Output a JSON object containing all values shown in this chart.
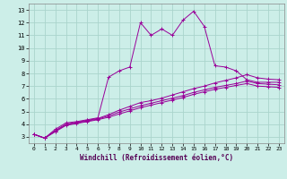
{
  "xlabel": "Windchill (Refroidissement éolien,°C)",
  "background_color": "#cceee8",
  "line_color": "#990099",
  "grid_color": "#aad4cc",
  "xlim": [
    -0.5,
    23.5
  ],
  "ylim": [
    2.5,
    13.5
  ],
  "xticks": [
    0,
    1,
    2,
    3,
    4,
    5,
    6,
    7,
    8,
    9,
    10,
    11,
    12,
    13,
    14,
    15,
    16,
    17,
    18,
    19,
    20,
    21,
    22,
    23
  ],
  "yticks": [
    3,
    4,
    5,
    6,
    7,
    8,
    9,
    10,
    11,
    12,
    13
  ],
  "series": [
    [
      3.2,
      2.9,
      3.6,
      4.1,
      4.2,
      4.35,
      4.5,
      7.7,
      8.2,
      8.5,
      12.0,
      11.0,
      11.5,
      11.0,
      12.2,
      12.9,
      11.7,
      8.6,
      8.5,
      8.2,
      7.5,
      7.3,
      7.3,
      7.3
    ],
    [
      3.2,
      2.9,
      3.5,
      4.0,
      4.15,
      4.3,
      4.45,
      4.75,
      5.1,
      5.4,
      5.7,
      5.85,
      6.05,
      6.3,
      6.55,
      6.8,
      7.0,
      7.25,
      7.45,
      7.65,
      7.9,
      7.65,
      7.55,
      7.5
    ],
    [
      3.2,
      2.9,
      3.45,
      3.95,
      4.1,
      4.25,
      4.4,
      4.65,
      4.95,
      5.2,
      5.45,
      5.65,
      5.85,
      6.05,
      6.25,
      6.5,
      6.7,
      6.9,
      7.05,
      7.2,
      7.4,
      7.2,
      7.15,
      7.1
    ],
    [
      3.2,
      2.9,
      3.4,
      3.9,
      4.05,
      4.2,
      4.35,
      4.55,
      4.8,
      5.05,
      5.3,
      5.5,
      5.7,
      5.9,
      6.1,
      6.35,
      6.55,
      6.75,
      6.9,
      7.05,
      7.2,
      7.0,
      6.95,
      6.9
    ]
  ]
}
